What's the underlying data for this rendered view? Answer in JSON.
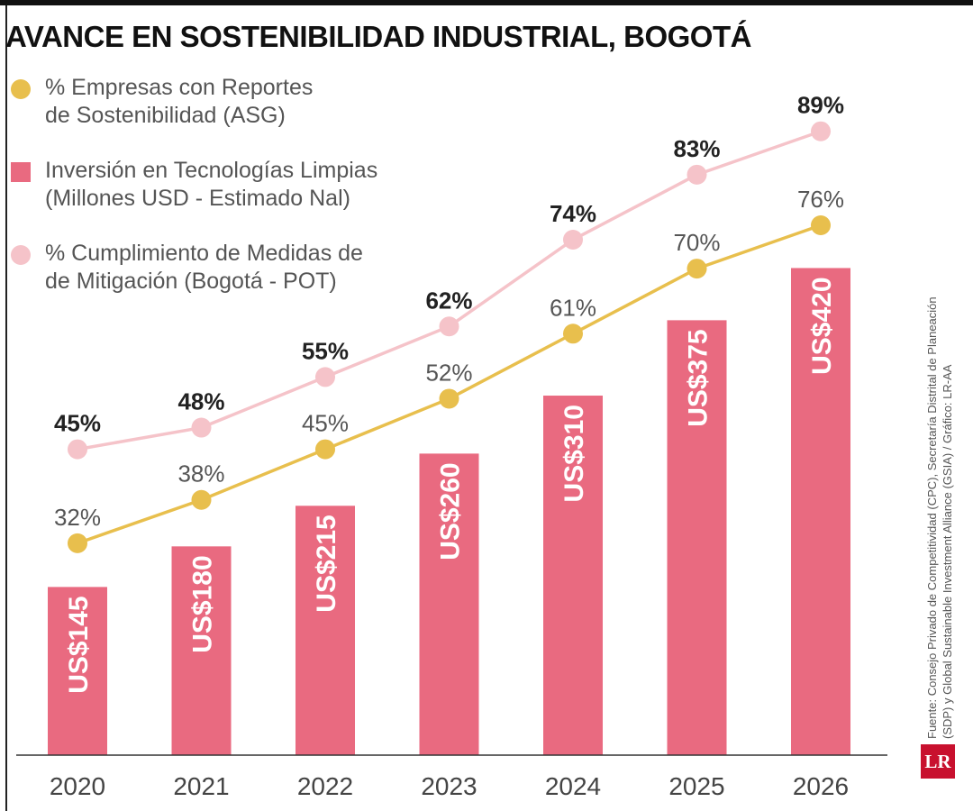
{
  "chart_data": {
    "type": "bar+line",
    "title": "AVANCE EN SOSTENIBILIDAD INDUSTRIAL, BOGOTÁ",
    "categories": [
      "2020",
      "2021",
      "2022",
      "2023",
      "2024",
      "2025",
      "2026"
    ],
    "series": [
      {
        "name": "% Empresas con Reportes de Sostenibilidad (ASG)",
        "kind": "line",
        "color": "#e8bf4d",
        "values": [
          32,
          38,
          45,
          52,
          61,
          70,
          76
        ],
        "labels": [
          "32%",
          "38%",
          "45%",
          "52%",
          "61%",
          "70%",
          "76%"
        ]
      },
      {
        "name": "Inversión en Tecnologías Limpias (Millones USD - Estimado Nal)",
        "kind": "bar",
        "color": "#e96a80",
        "values": [
          145,
          180,
          215,
          260,
          310,
          375,
          420
        ],
        "labels": [
          "US$145",
          "US$180",
          "US$215",
          "US$260",
          "US$310",
          "US$375",
          "US$420"
        ]
      },
      {
        "name": "% Cumplimiento de Medidas de Mitigación (Bogotá - POT)",
        "kind": "line",
        "color": "#f5c3c9",
        "values": [
          45,
          48,
          55,
          62,
          74,
          83,
          89
        ],
        "labels": [
          "45%",
          "48%",
          "55%",
          "62%",
          "74%",
          "83%",
          "89%"
        ]
      }
    ],
    "legend": [
      {
        "line1": "% Empresas con Reportes",
        "line2": "de Sostenibilidad (ASG)",
        "shape": "dot",
        "color": "#e8bf4d"
      },
      {
        "line1": "Inversión en Tecnologías Limpias",
        "line2": "(Millones USD - Estimado Nal)",
        "shape": "square",
        "color": "#e96a80"
      },
      {
        "line1": "% Cumplimiento de Medidas de",
        "line2": "de Mitigación (Bogotá - POT)",
        "shape": "dot",
        "color": "#f5c3c9"
      }
    ],
    "legend_placement": "top-left",
    "grid": false
  },
  "source": {
    "line1": "Fuente: Consejo Privado de Competitividad (CPC), Secretaría Distrital de Planeación",
    "line2": "(SDP) y Global Sustainable Investment Alliance (GSIA) / Gráfico: LR-AA"
  },
  "logo": "LR"
}
